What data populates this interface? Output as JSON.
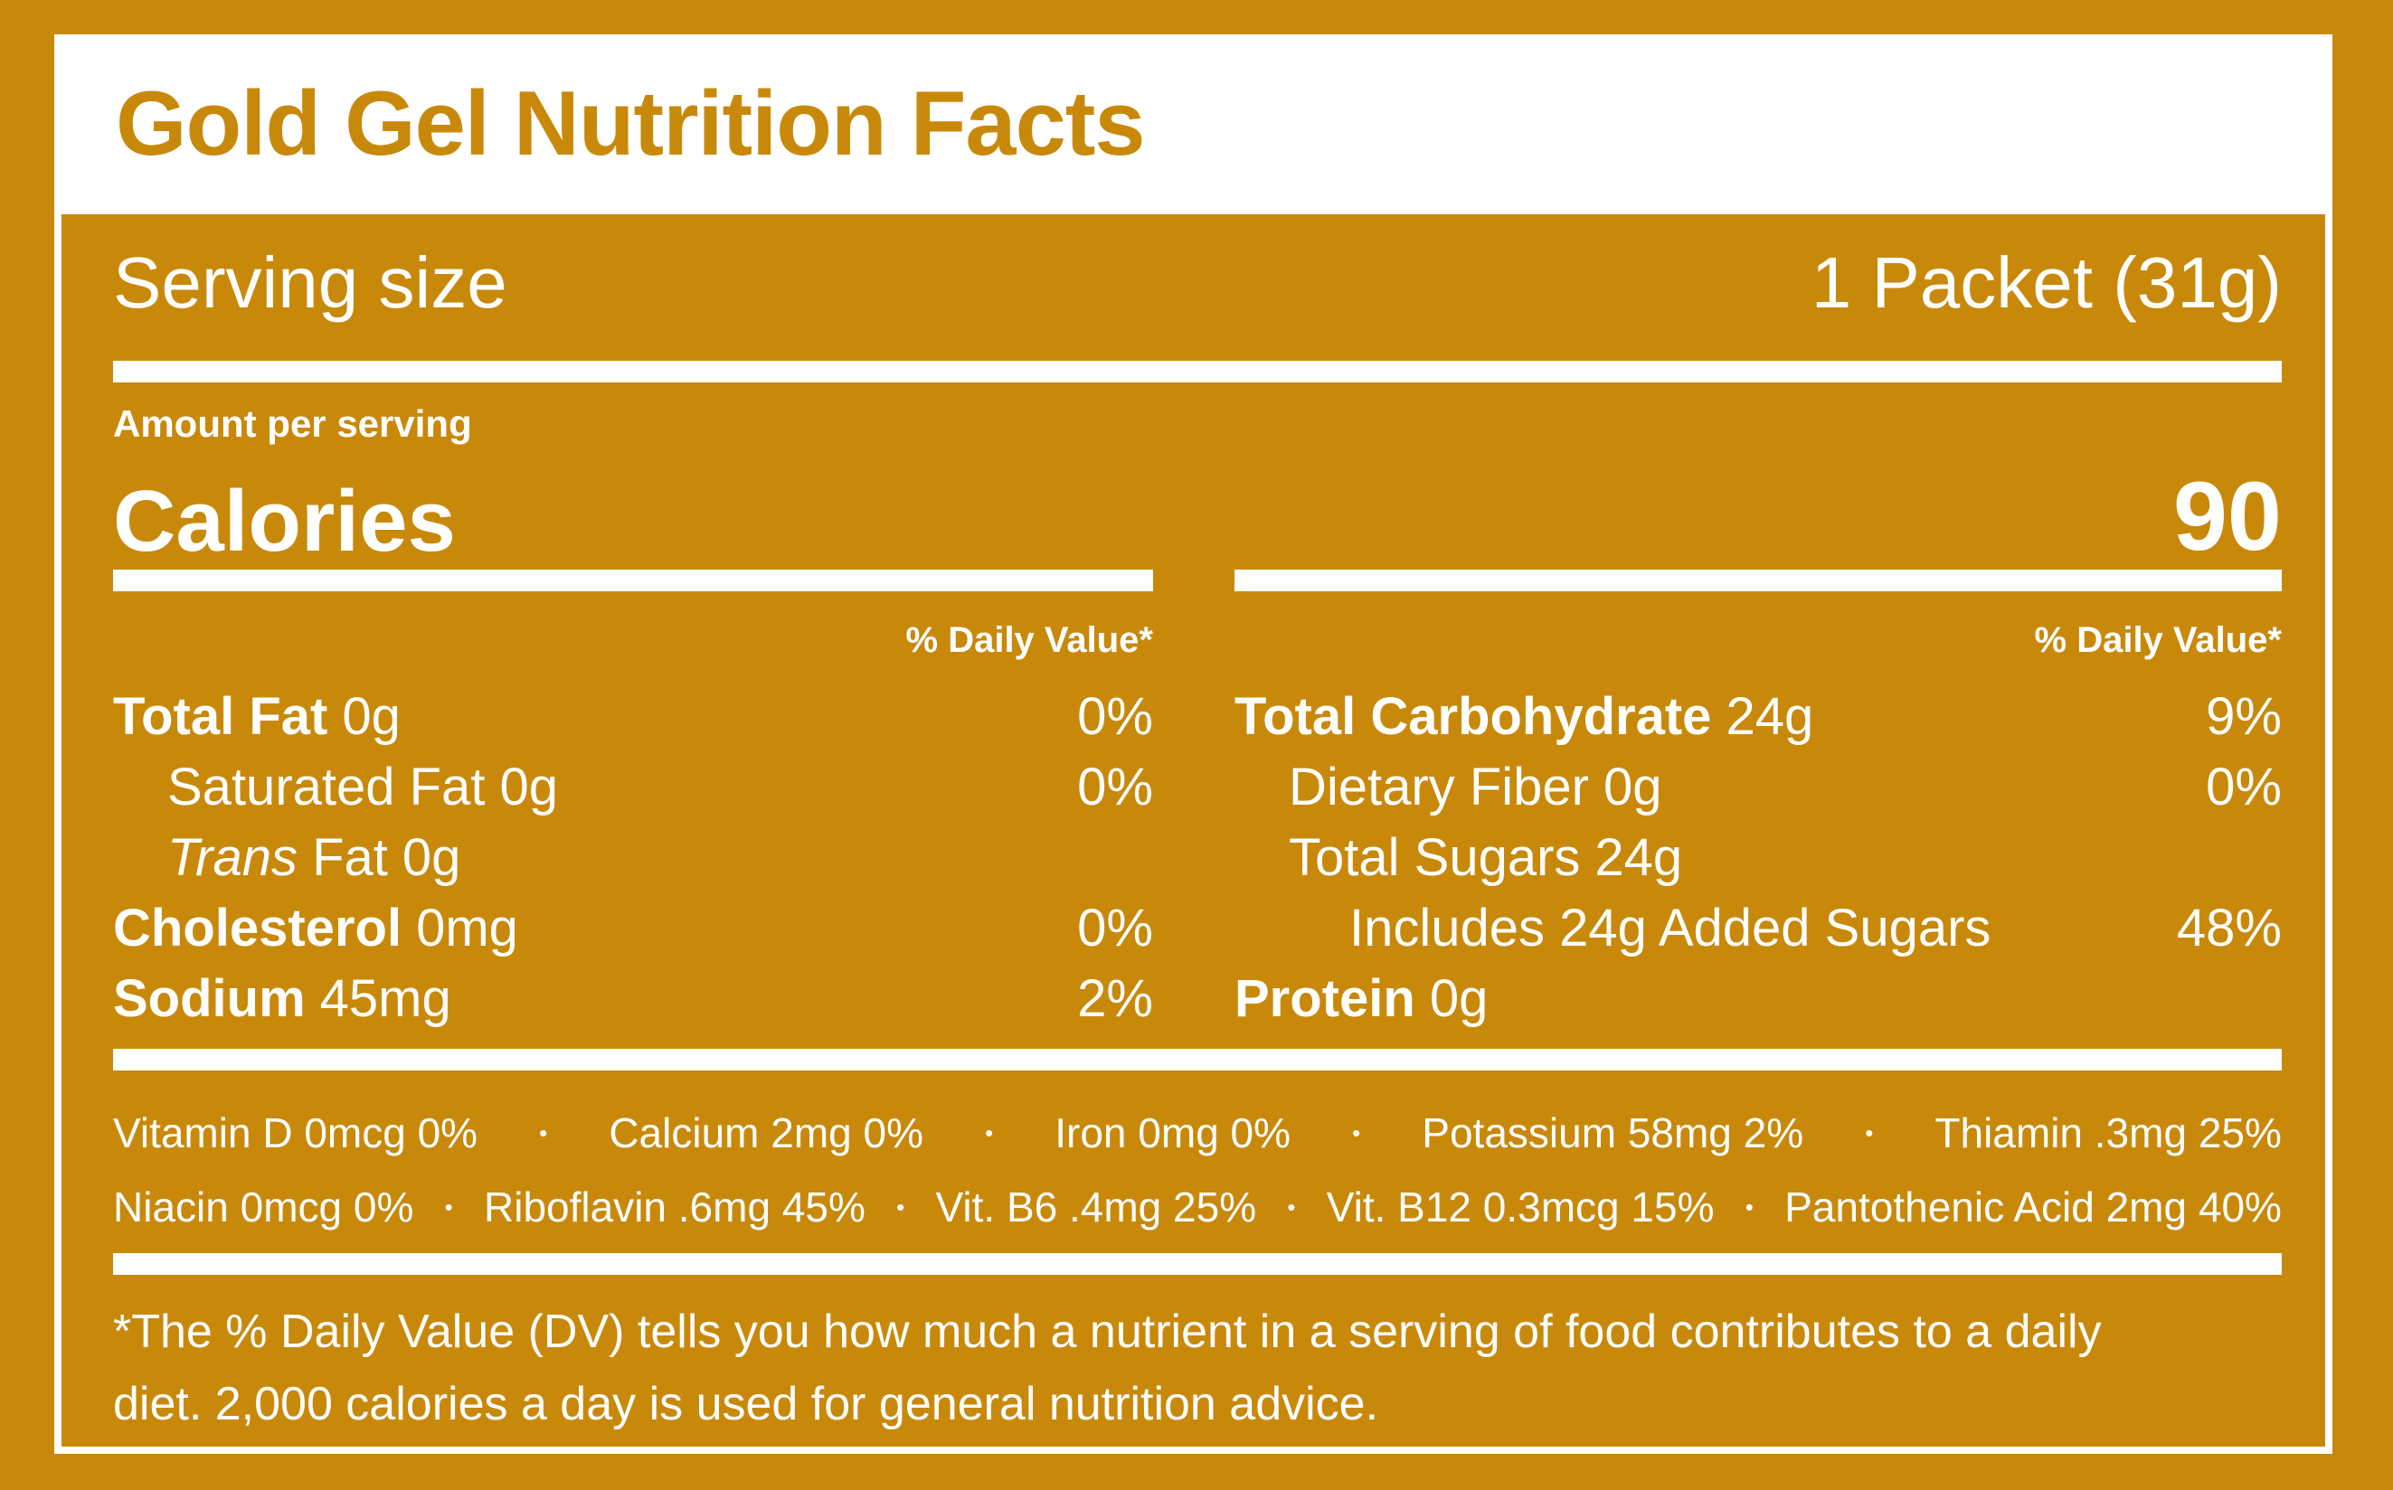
{
  "colors": {
    "gold": "#C8890B",
    "white": "#FFFFFF"
  },
  "title": "Gold Gel Nutrition Facts",
  "serving_row": {
    "label": "Serving size",
    "value": "1 Packet (31g)"
  },
  "amount_per_serving_label": "Amount per serving",
  "calories_row": {
    "label": "Calories",
    "value": "90"
  },
  "daily_value_header": "% Daily Value*",
  "nutrients": {
    "left": [
      {
        "label": "Total Fat",
        "bold": true,
        "amount": "0g",
        "dv": "0%",
        "indent": 0
      },
      {
        "label": "Saturated Fat",
        "bold": false,
        "amount": "0g",
        "dv": "0%",
        "indent": 1
      },
      {
        "italic_prefix": "Trans",
        "label": "Fat",
        "bold": false,
        "amount": "0g",
        "dv": "",
        "indent": 1
      },
      {
        "label": "Cholesterol",
        "bold": true,
        "amount": "0mg",
        "dv": "0%",
        "indent": 0
      },
      {
        "label": "Sodium",
        "bold": true,
        "amount": "45mg",
        "dv": "2%",
        "indent": 0
      }
    ],
    "right": [
      {
        "label": "Total Carbohydrate",
        "bold": true,
        "amount": "24g",
        "dv": "9%",
        "indent": 0
      },
      {
        "label": "Dietary Fiber",
        "bold": false,
        "amount": "0g",
        "dv": "0%",
        "indent": 1
      },
      {
        "label": "Total Sugars",
        "bold": false,
        "amount": "24g",
        "dv": "",
        "indent": 1
      },
      {
        "label": "Includes 24g Added Sugars",
        "bold": false,
        "amount": "",
        "dv": "48%",
        "indent": 2
      },
      {
        "label": "Protein",
        "bold": true,
        "amount": "0g",
        "dv": "",
        "indent": 0
      }
    ]
  },
  "micronutrients": {
    "separator": "•",
    "row1": [
      "Vitamin D 0mcg 0%",
      "Calcium 2mg 0%",
      "Iron 0mg 0%",
      "Potassium 58mg 2%",
      "Thiamin .3mg 25%"
    ],
    "row2": [
      "Niacin 0mcg 0%",
      "Riboflavin .6mg 45%",
      "Vit. B6 .4mg 25%",
      "Vit. B12 0.3mcg 15%",
      "Pantothenic Acid 2mg 40%"
    ]
  },
  "footnote": {
    "line1": "*The % Daily Value (DV) tells you how much a nutrient in a serving of food contributes to a daily",
    "line2": "diet. 2,000 calories a day is used for general nutrition advice."
  }
}
